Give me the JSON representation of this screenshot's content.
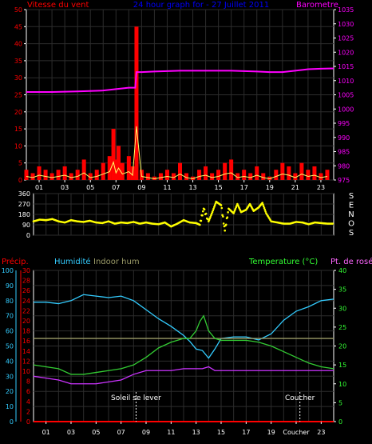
{
  "panel1": {
    "title": "24 hour graph for - 27 Juillet 2011",
    "left_label": "Vitesse du vent",
    "right_label": "Barometre",
    "colors": {
      "wind": "#ff0000",
      "gust": "#ffff00",
      "baro": "#ff00ff",
      "axis": "#ffffff",
      "grid": "#3a3a3a",
      "title": "#0000ff"
    }
  },
  "panel2": {
    "direction_letters": [
      "S",
      "E",
      "N",
      "O",
      "S"
    ],
    "colors": {
      "dir": "#ffff00"
    }
  },
  "panel3": {
    "labels": {
      "precip": "Précip.",
      "humid": "Humidité",
      "indoor": "Indoor hum",
      "temp": "Temperature (°C)",
      "dew": "Pt. de rosée"
    },
    "annotations": {
      "sunrise": "Soleil se lever",
      "sunset": "Coucher"
    },
    "colors": {
      "precip": "#ff0000",
      "humid": "#33ccff",
      "indoor": "#999966",
      "temp": "#33cc33",
      "dew": "#cc33ff",
      "temp_label": "#33ff33",
      "dew_label": "#ff66ff"
    }
  },
  "x_ticks": [
    "01",
    "03",
    "05",
    "07",
    "09",
    "11",
    "13",
    "15",
    "17",
    "19",
    "21",
    "23"
  ],
  "x_ticks_bottom": [
    "01",
    "03",
    "05",
    "07",
    "09",
    "11",
    "13",
    "15",
    "17",
    "19",
    "Coucher",
    "23"
  ],
  "chart_data": [
    {
      "type": "line",
      "id": "wind-baro",
      "x_range": [
        0,
        24
      ],
      "left_axis": {
        "ticks": [
          "0",
          "5",
          "10",
          "15",
          "20",
          "25",
          "30",
          "35",
          "40",
          "45",
          "50"
        ],
        "ylim": [
          0,
          50
        ]
      },
      "right_axis": {
        "ticks": [
          "975",
          "980",
          "985",
          "990",
          "995",
          "1000",
          "1005",
          "1010",
          "1015",
          "1020",
          "1025",
          "1030",
          "1035"
        ],
        "ylim": [
          975,
          1035
        ]
      },
      "series": [
        {
          "name": "Vitesse du vent",
          "axis": "left",
          "style": "bars",
          "x": [
            0,
            0.5,
            1,
            1.5,
            2,
            2.5,
            3,
            3.5,
            4,
            4.5,
            5,
            5.5,
            6,
            6.5,
            6.8,
            7,
            7.2,
            7.5,
            8,
            8.3,
            8.6,
            9,
            9.5,
            10,
            10.5,
            11,
            11.5,
            12,
            12.5,
            13,
            13.5,
            14,
            14.5,
            15,
            15.5,
            16,
            16.5,
            17,
            17.5,
            18,
            18.5,
            19,
            19.5,
            20,
            20.5,
            21,
            21.5,
            22,
            22.5,
            23,
            23.5
          ],
          "values": [
            3,
            2,
            4,
            3,
            2,
            3,
            4,
            2,
            3,
            6,
            2,
            3,
            5,
            7,
            15,
            6,
            10,
            5,
            7,
            4,
            45,
            3,
            2,
            1,
            2,
            3,
            2,
            5,
            2,
            1,
            3,
            4,
            2,
            3,
            5,
            6,
            2,
            3,
            2,
            4,
            2,
            1,
            3,
            5,
            4,
            2,
            5,
            3,
            4,
            2,
            3
          ]
        },
        {
          "name": "Barometre",
          "axis": "right",
          "style": "line",
          "x": [
            0,
            2,
            4,
            6,
            7,
            8,
            8.5,
            8.6,
            9,
            10,
            12,
            14,
            16,
            18,
            19,
            20,
            21,
            22,
            23,
            24
          ],
          "values": [
            1006,
            1006,
            1006.2,
            1006.5,
            1007,
            1007.5,
            1007.5,
            1013,
            1013,
            1013.2,
            1013.5,
            1013.5,
            1013.5,
            1013.2,
            1013,
            1013,
            1013.5,
            1014,
            1014.2,
            1014.3
          ]
        }
      ]
    },
    {
      "type": "scatter",
      "id": "wind-direction",
      "x_range": [
        0,
        24
      ],
      "y_axis": {
        "ticks": [
          "0",
          "90",
          "180",
          "270",
          "360"
        ],
        "ylim": [
          0,
          360
        ]
      },
      "series": [
        {
          "name": "Direction du vent",
          "x": [
            0,
            0.5,
            1,
            1.5,
            2,
            2.5,
            3,
            3.5,
            4,
            4.5,
            5,
            5.5,
            6,
            6.5,
            7,
            7.5,
            8,
            8.5,
            9,
            9.5,
            10,
            10.5,
            11,
            11.5,
            12,
            12.5,
            13,
            13.3,
            13.6,
            14,
            14.3,
            14.6,
            15,
            15.3,
            15.6,
            16,
            16.3,
            16.6,
            17,
            17.3,
            17.6,
            18,
            18.3,
            18.6,
            19,
            19.5,
            20,
            20.5,
            21,
            21.5,
            22,
            22.5,
            23,
            23.5,
            24
          ],
          "values": [
            120,
            135,
            130,
            140,
            120,
            110,
            130,
            120,
            115,
            125,
            110,
            105,
            120,
            100,
            110,
            105,
            115,
            100,
            110,
            100,
            95,
            110,
            75,
            100,
            130,
            110,
            105,
            90,
            230,
            120,
            200,
            290,
            260,
            40,
            230,
            190,
            270,
            200,
            220,
            270,
            210,
            240,
            280,
            190,
            120,
            110,
            100,
            100,
            115,
            110,
            95,
            110,
            105,
            100,
            100
          ]
        }
      ]
    },
    {
      "type": "line",
      "id": "humidity-temperature",
      "x_range": [
        0,
        24
      ],
      "left_axis_precip": {
        "ticks": [
          "0",
          "2",
          "4",
          "6",
          "8",
          "10",
          "12",
          "14",
          "16",
          "18",
          "20",
          "22",
          "24",
          "26",
          "28",
          "30"
        ],
        "ylim": [
          0,
          30
        ]
      },
      "left_axis_humid": {
        "ticks": [
          "0",
          "10",
          "20",
          "30",
          "40",
          "50",
          "60",
          "70",
          "80",
          "90",
          "100"
        ],
        "ylim": [
          0,
          100
        ]
      },
      "right_axis": {
        "ticks": [
          "0",
          "5",
          "10",
          "15",
          "20",
          "25",
          "30",
          "35",
          "40"
        ],
        "ylim": [
          0,
          40
        ]
      },
      "series": [
        {
          "name": "Précip.",
          "axis": "precip",
          "x": [
            0,
            24
          ],
          "values": [
            0,
            0
          ]
        },
        {
          "name": "Humidité",
          "axis": "humid",
          "x": [
            0,
            1,
            2,
            3,
            4,
            5,
            6,
            7,
            8,
            9,
            10,
            11,
            12,
            12.5,
            13,
            13.5,
            14,
            14.5,
            15,
            16,
            17,
            18,
            19,
            20,
            21,
            22,
            23,
            24
          ],
          "values": [
            79,
            79,
            78,
            80,
            84,
            83,
            82,
            83,
            80,
            74,
            68,
            63,
            57,
            53,
            48,
            47,
            42,
            48,
            55,
            56,
            56,
            54,
            58,
            67,
            73,
            76,
            80,
            81
          ]
        },
        {
          "name": "Indoor hum",
          "axis": "humid",
          "x": [
            0,
            4,
            8,
            12,
            16,
            20,
            24
          ],
          "values": [
            55,
            55,
            55,
            55,
            55,
            55,
            55
          ]
        },
        {
          "name": "Temperature (°C)",
          "axis": "temp",
          "x": [
            0,
            1,
            2,
            3,
            4,
            5,
            6,
            7,
            8,
            9,
            10,
            11,
            12,
            12.5,
            13,
            13.3,
            13.6,
            14,
            14.5,
            15,
            16,
            17,
            18,
            19,
            20,
            21,
            22,
            23,
            24
          ],
          "values": [
            15,
            14.5,
            14,
            12.5,
            12.5,
            13,
            13.5,
            14,
            15,
            17,
            19.5,
            21,
            22,
            22,
            24,
            26.5,
            28,
            24,
            22,
            21.5,
            21.5,
            21.5,
            21,
            20,
            18.5,
            17,
            15.5,
            14.5,
            14
          ]
        },
        {
          "name": "Pt. de rosée",
          "axis": "temp",
          "x": [
            0,
            1,
            2,
            3,
            4,
            5,
            6,
            7,
            8,
            9,
            10,
            11,
            12,
            12.5,
            13,
            13.5,
            14,
            14.5,
            15,
            16,
            17,
            18,
            19,
            20,
            21,
            22,
            23,
            24
          ],
          "values": [
            12,
            11.5,
            11,
            10,
            10,
            10,
            10.5,
            11,
            12.5,
            13.5,
            13.5,
            13.5,
            14,
            14,
            14,
            14,
            14.5,
            13.5,
            13.5,
            13.5,
            13.5,
            13.5,
            13.5,
            13.5,
            13.5,
            13.5,
            13.5,
            13.5
          ]
        }
      ]
    }
  ]
}
